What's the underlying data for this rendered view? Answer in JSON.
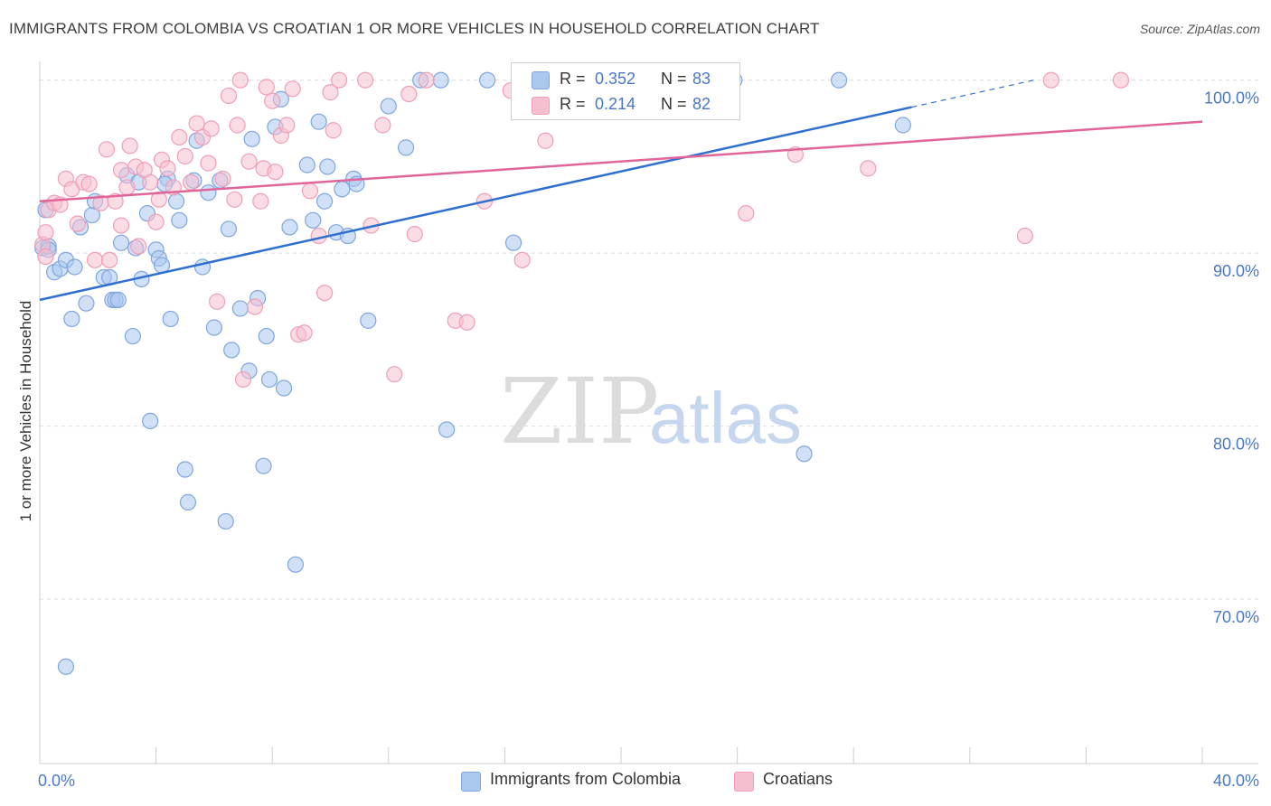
{
  "title": "IMMIGRANTS FROM COLOMBIA VS CROATIAN 1 OR MORE VEHICLES IN HOUSEHOLD CORRELATION CHART",
  "source": "Source: ZipAtlas.com",
  "watermark": {
    "zip": "ZIP",
    "atlas": "atlas"
  },
  "legend": {
    "r_label": "R =",
    "n_label": "N =",
    "rows": [
      {
        "r": "0.352",
        "n": "83"
      },
      {
        "r": "0.214",
        "n": "82"
      }
    ]
  },
  "bottom_legend": {
    "series_a": "Immigrants from Colombia",
    "series_b": "Croatians"
  },
  "colors": {
    "blue_fill": "#aac7ee",
    "blue_stroke": "#7fa6de",
    "blue_line": "#2f6fcf",
    "pink_fill": "#f6bfd0",
    "pink_stroke": "#ef9fb8",
    "pink_line": "#e0669a",
    "tick_text": "#4a78c8",
    "grid": "#dddddd"
  },
  "chart_data": {
    "type": "scatter",
    "title": "IMMIGRANTS FROM COLOMBIA VS CROATIAN 1 OR MORE VEHICLES IN HOUSEHOLD CORRELATION CHART",
    "xlabel": "",
    "ylabel": "1 or more Vehicles in Household",
    "xlim": [
      0,
      40
    ],
    "ylim": [
      60.5,
      101.5
    ],
    "x_tick_labels": [
      {
        "value": 0,
        "label": "0.0%"
      },
      {
        "value": 40,
        "label": "40.0%"
      }
    ],
    "y_tick_labels": [
      {
        "value": 100,
        "label": "100.0%"
      },
      {
        "value": 90,
        "label": "90.0%"
      },
      {
        "value": 80,
        "label": "80.0%"
      },
      {
        "value": 70,
        "label": "70.0%"
      }
    ],
    "series": [
      {
        "name": "Immigrants from Colombia",
        "color": "#aac7ee",
        "trend": {
          "x": [
            0,
            30,
            34.2
          ],
          "y": [
            87.3,
            98.6,
            100.0
          ],
          "solid_until_x": 30
        },
        "points": [
          [
            0.1,
            90.3
          ],
          [
            0.3,
            90.4
          ],
          [
            0.3,
            90.2
          ],
          [
            0.5,
            88.9
          ],
          [
            0.7,
            89.1
          ],
          [
            0.9,
            89.6
          ],
          [
            1.1,
            86.2
          ],
          [
            1.2,
            89.2
          ],
          [
            1.4,
            91.5
          ],
          [
            1.6,
            87.1
          ],
          [
            1.8,
            92.2
          ],
          [
            1.9,
            93.0
          ],
          [
            2.2,
            88.6
          ],
          [
            2.4,
            88.6
          ],
          [
            2.5,
            87.3
          ],
          [
            2.6,
            87.3
          ],
          [
            2.7,
            87.3
          ],
          [
            2.8,
            90.6
          ],
          [
            3.0,
            94.5
          ],
          [
            3.2,
            85.2
          ],
          [
            3.3,
            90.3
          ],
          [
            3.4,
            94.1
          ],
          [
            3.5,
            88.5
          ],
          [
            3.7,
            92.3
          ],
          [
            3.8,
            80.3
          ],
          [
            4.0,
            90.2
          ],
          [
            4.1,
            89.7
          ],
          [
            4.2,
            89.3
          ],
          [
            4.4,
            94.3
          ],
          [
            4.5,
            86.2
          ],
          [
            4.7,
            93.0
          ],
          [
            4.8,
            91.9
          ],
          [
            5.0,
            77.5
          ],
          [
            5.1,
            75.6
          ],
          [
            5.3,
            94.2
          ],
          [
            5.4,
            96.5
          ],
          [
            5.6,
            89.2
          ],
          [
            5.8,
            93.5
          ],
          [
            6.0,
            85.7
          ],
          [
            6.2,
            94.2
          ],
          [
            6.4,
            74.5
          ],
          [
            6.5,
            91.4
          ],
          [
            6.6,
            84.4
          ],
          [
            6.9,
            86.8
          ],
          [
            7.2,
            83.2
          ],
          [
            7.3,
            96.6
          ],
          [
            7.5,
            87.4
          ],
          [
            7.7,
            77.7
          ],
          [
            7.8,
            85.2
          ],
          [
            7.9,
            82.7
          ],
          [
            8.1,
            97.3
          ],
          [
            8.3,
            98.9
          ],
          [
            8.4,
            82.2
          ],
          [
            8.6,
            91.5
          ],
          [
            8.8,
            72.0
          ],
          [
            9.2,
            95.1
          ],
          [
            9.4,
            91.9
          ],
          [
            9.6,
            97.6
          ],
          [
            9.8,
            93.0
          ],
          [
            9.9,
            95.0
          ],
          [
            10.2,
            91.2
          ],
          [
            10.4,
            93.7
          ],
          [
            10.6,
            91.0
          ],
          [
            10.8,
            94.3
          ],
          [
            10.9,
            94.0
          ],
          [
            11.3,
            86.1
          ],
          [
            12.0,
            98.5
          ],
          [
            12.6,
            96.1
          ],
          [
            13.1,
            100.0
          ],
          [
            13.8,
            100.0
          ],
          [
            14.0,
            79.8
          ],
          [
            15.4,
            100.0
          ],
          [
            16.3,
            90.6
          ],
          [
            18.3,
            100.0
          ],
          [
            19.5,
            100.0
          ],
          [
            21.1,
            100.0
          ],
          [
            23.9,
            100.0
          ],
          [
            26.3,
            78.4
          ],
          [
            27.5,
            100.0
          ],
          [
            29.7,
            97.4
          ],
          [
            0.9,
            66.1
          ],
          [
            0.2,
            92.5
          ],
          [
            4.3,
            94.0
          ]
        ]
      },
      {
        "name": "Croatians",
        "color": "#f6bfd0",
        "trend": {
          "x": [
            0,
            40
          ],
          "y": [
            93.0,
            97.6
          ],
          "solid_until_x": 40
        },
        "points": [
          [
            0.1,
            90.5
          ],
          [
            0.2,
            91.2
          ],
          [
            0.3,
            92.5
          ],
          [
            0.5,
            92.9
          ],
          [
            0.7,
            92.8
          ],
          [
            0.9,
            94.3
          ],
          [
            1.1,
            93.7
          ],
          [
            1.3,
            91.7
          ],
          [
            1.5,
            94.1
          ],
          [
            1.7,
            94.0
          ],
          [
            1.9,
            89.6
          ],
          [
            2.1,
            92.9
          ],
          [
            2.3,
            96.0
          ],
          [
            2.4,
            89.6
          ],
          [
            2.6,
            93.0
          ],
          [
            2.8,
            91.6
          ],
          [
            3.0,
            93.8
          ],
          [
            3.1,
            96.2
          ],
          [
            3.3,
            95.0
          ],
          [
            3.4,
            90.4
          ],
          [
            3.6,
            94.8
          ],
          [
            3.8,
            94.1
          ],
          [
            4.0,
            91.8
          ],
          [
            4.1,
            93.1
          ],
          [
            4.2,
            95.4
          ],
          [
            4.4,
            94.9
          ],
          [
            4.6,
            93.8
          ],
          [
            4.8,
            96.7
          ],
          [
            5.0,
            95.6
          ],
          [
            5.2,
            94.1
          ],
          [
            5.4,
            97.5
          ],
          [
            5.6,
            96.7
          ],
          [
            5.8,
            95.2
          ],
          [
            5.9,
            97.2
          ],
          [
            6.1,
            87.2
          ],
          [
            6.3,
            94.3
          ],
          [
            6.5,
            99.1
          ],
          [
            6.7,
            93.1
          ],
          [
            6.8,
            97.4
          ],
          [
            6.9,
            100.0
          ],
          [
            7.0,
            82.7
          ],
          [
            7.2,
            95.3
          ],
          [
            7.4,
            86.9
          ],
          [
            7.6,
            93.0
          ],
          [
            7.7,
            94.9
          ],
          [
            7.8,
            99.6
          ],
          [
            8.0,
            98.8
          ],
          [
            8.1,
            94.7
          ],
          [
            8.3,
            96.8
          ],
          [
            8.5,
            97.4
          ],
          [
            8.7,
            99.5
          ],
          [
            8.9,
            85.3
          ],
          [
            9.1,
            85.4
          ],
          [
            9.3,
            93.6
          ],
          [
            9.6,
            91.0
          ],
          [
            9.8,
            87.7
          ],
          [
            10.0,
            99.3
          ],
          [
            10.1,
            97.1
          ],
          [
            10.3,
            100.0
          ],
          [
            11.2,
            100.0
          ],
          [
            11.4,
            91.6
          ],
          [
            11.8,
            97.4
          ],
          [
            12.2,
            83.0
          ],
          [
            12.7,
            99.2
          ],
          [
            12.9,
            91.1
          ],
          [
            13.3,
            100.0
          ],
          [
            14.3,
            86.1
          ],
          [
            14.7,
            86.0
          ],
          [
            15.3,
            93.0
          ],
          [
            16.2,
            99.4
          ],
          [
            16.6,
            89.6
          ],
          [
            17.4,
            96.5
          ],
          [
            19.5,
            100.0
          ],
          [
            21.3,
            100.0
          ],
          [
            24.3,
            92.3
          ],
          [
            26.0,
            95.7
          ],
          [
            28.5,
            94.9
          ],
          [
            33.9,
            91.0
          ],
          [
            34.8,
            100.0
          ],
          [
            37.2,
            100.0
          ],
          [
            0.2,
            89.8
          ],
          [
            2.8,
            94.8
          ]
        ]
      }
    ]
  }
}
